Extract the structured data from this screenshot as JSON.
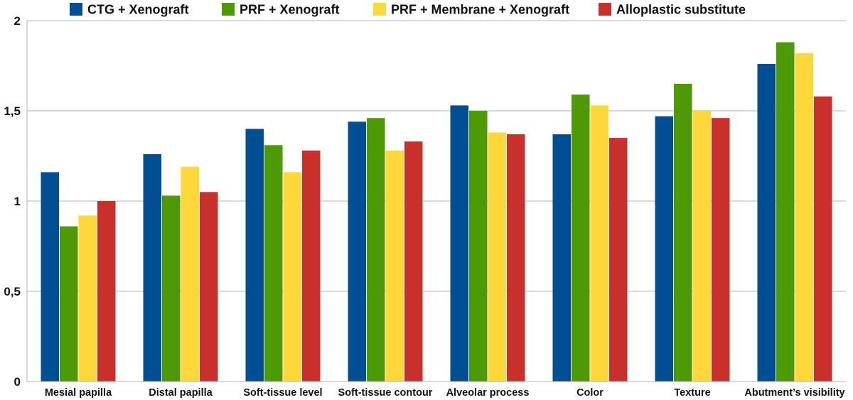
{
  "chart_data": {
    "type": "bar",
    "title": "",
    "xlabel": "",
    "ylabel": "",
    "ylim": [
      0,
      2
    ],
    "yticks": [
      0,
      0.5,
      1,
      1.5,
      2
    ],
    "ytick_labels": [
      "0",
      "0,5",
      "1",
      "1,5",
      "2"
    ],
    "grid": true,
    "legend_position": "top",
    "categories": [
      "Mesial papilla",
      "Distal papilla",
      "Soft-tissue level",
      "Soft-tissue contour",
      "Alveolar process",
      "Color",
      "Texture",
      "Abutment’s visibility"
    ],
    "series": [
      {
        "name": "CTG + Xenograft",
        "color": "#004f95",
        "values": [
          1.16,
          1.26,
          1.4,
          1.44,
          1.53,
          1.37,
          1.47,
          1.76
        ]
      },
      {
        "name": "PRF + Xenograft",
        "color": "#4e9a06",
        "values": [
          0.86,
          1.03,
          1.31,
          1.46,
          1.5,
          1.59,
          1.65,
          1.88
        ]
      },
      {
        "name": "PRF + Membrane + Xenograft",
        "color": "#fcd838",
        "values": [
          0.92,
          1.19,
          1.16,
          1.28,
          1.38,
          1.53,
          1.5,
          1.82
        ]
      },
      {
        "name": "Alloplastic substitute",
        "color": "#c9302c",
        "values": [
          1.0,
          1.05,
          1.28,
          1.33,
          1.37,
          1.35,
          1.46,
          1.58
        ]
      }
    ]
  }
}
